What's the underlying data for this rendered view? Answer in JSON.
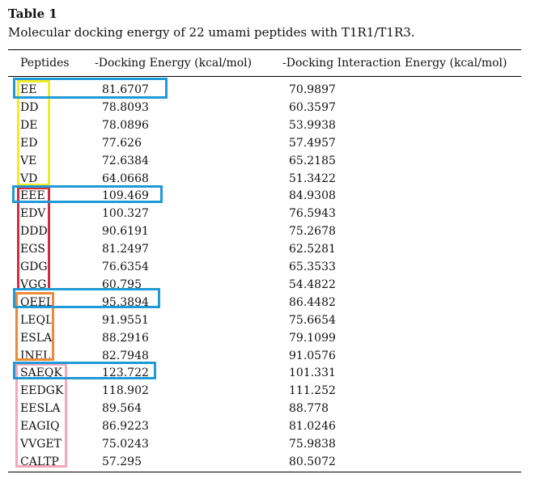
{
  "table": {
    "title": "Table 1",
    "caption": "Molecular docking energy of 22 umami peptides with T1R1/T1R3.",
    "columns": [
      "Peptides",
      "-Docking Energy (kcal/mol)",
      "-Docking Interaction Energy (kcal/mol)"
    ],
    "rows": [
      {
        "peptide": "EE",
        "docking": "81.6707",
        "interaction": "70.9897"
      },
      {
        "peptide": "DD",
        "docking": "78.8093",
        "interaction": "60.3597"
      },
      {
        "peptide": "DE",
        "docking": "78.0896",
        "interaction": "53.9938"
      },
      {
        "peptide": "ED",
        "docking": "77.626",
        "interaction": "57.4957"
      },
      {
        "peptide": "VE",
        "docking": "72.6384",
        "interaction": "65.2185"
      },
      {
        "peptide": "VD",
        "docking": "64.0668",
        "interaction": "51.3422"
      },
      {
        "peptide": "EEE",
        "docking": "109.469",
        "interaction": "84.9308"
      },
      {
        "peptide": "EDV",
        "docking": "100.327",
        "interaction": "76.5943"
      },
      {
        "peptide": "DDD",
        "docking": "90.6191",
        "interaction": "75.2678"
      },
      {
        "peptide": "EGS",
        "docking": "81.2497",
        "interaction": "62.5281"
      },
      {
        "peptide": "GDG",
        "docking": "76.6354",
        "interaction": "65.3533"
      },
      {
        "peptide": "VGG",
        "docking": "60.795",
        "interaction": "54.4822"
      },
      {
        "peptide": "QEEL",
        "docking": "95.3894",
        "interaction": "86.4482"
      },
      {
        "peptide": "LEQL",
        "docking": "91.9551",
        "interaction": "75.6654"
      },
      {
        "peptide": "ESLA",
        "docking": "88.2916",
        "interaction": "79.1099"
      },
      {
        "peptide": "INEL",
        "docking": "82.7948",
        "interaction": "91.0576"
      },
      {
        "peptide": "SAEQK",
        "docking": "123.722",
        "interaction": "101.331"
      },
      {
        "peptide": "EEDGK",
        "docking": "118.902",
        "interaction": "111.252"
      },
      {
        "peptide": "EESLA",
        "docking": "89.564",
        "interaction": "88.778"
      },
      {
        "peptide": "EAGIQ",
        "docking": "86.9223",
        "interaction": "81.0246"
      },
      {
        "peptide": "VVGET",
        "docking": "75.0243",
        "interaction": "75.9838"
      },
      {
        "peptide": "CALTP",
        "docking": "57.295",
        "interaction": "80.5072"
      }
    ]
  },
  "highlight_colors": {
    "best_in_group": "#1f9ad6",
    "dipeptides": "#f2ec22",
    "tripeptides": "#d62b3a",
    "tetrapeptides": "#ee8a35",
    "pentapeptides": "#f2a7bd"
  }
}
